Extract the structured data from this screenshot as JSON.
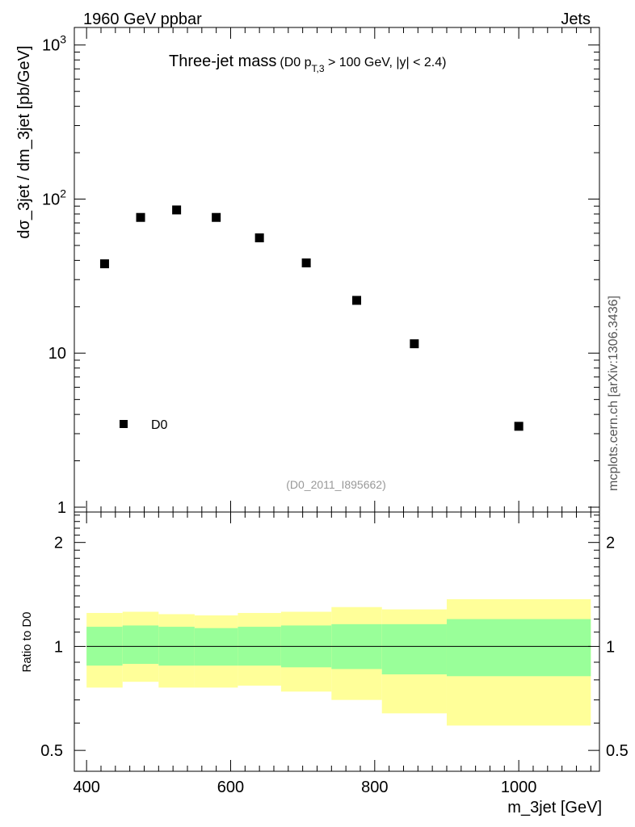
{
  "header": {
    "left": "1960 GeV ppbar",
    "right": "Jets"
  },
  "title": {
    "main": "Three-jet mass",
    "paren_open": "(D0 p",
    "sub": "T,3",
    "rest": " > 100 GeV, |y| < 2.4)"
  },
  "watermark": "(D0_2011_I895662)",
  "side_credit": "mcplots.cern.ch [arXiv:1306.3436]",
  "legend": {
    "label": "D0"
  },
  "chart_data": {
    "type": "scatter",
    "top": {
      "ylabel": "dσ_3jet / dm_3jet [pb/GeV]",
      "yscale": "log",
      "ylim": [
        0.93,
        1300
      ],
      "yticks": [
        {
          "value": 1,
          "label": "1"
        },
        {
          "value": 10,
          "label": "10"
        },
        {
          "value": 100,
          "label": "10",
          "exp": "2"
        },
        {
          "value": 1000,
          "label": "10",
          "exp": "3"
        }
      ],
      "series": [
        {
          "name": "D0",
          "x": [
            425,
            475,
            525,
            580,
            640,
            705,
            775,
            855,
            1000
          ],
          "y": [
            38,
            76,
            85,
            76,
            56,
            38.5,
            22,
            11.5,
            3.35
          ]
        }
      ]
    },
    "ratio": {
      "ylabel": "Ratio to D0",
      "yscale": "log",
      "ylim": [
        0.435,
        2.45
      ],
      "yticks": [
        {
          "value": 0.5,
          "label": "0.5"
        },
        {
          "value": 1,
          "label": "1"
        },
        {
          "value": 2,
          "label": "2"
        }
      ],
      "bands": [
        {
          "x0": 400,
          "x1": 450,
          "inner": [
            0.88,
            1.14
          ],
          "outer": [
            0.76,
            1.25
          ]
        },
        {
          "x0": 450,
          "x1": 500,
          "inner": [
            0.89,
            1.15
          ],
          "outer": [
            0.79,
            1.26
          ]
        },
        {
          "x0": 500,
          "x1": 550,
          "inner": [
            0.88,
            1.14
          ],
          "outer": [
            0.76,
            1.24
          ]
        },
        {
          "x0": 550,
          "x1": 610,
          "inner": [
            0.88,
            1.13
          ],
          "outer": [
            0.76,
            1.23
          ]
        },
        {
          "x0": 610,
          "x1": 670,
          "inner": [
            0.88,
            1.14
          ],
          "outer": [
            0.77,
            1.25
          ]
        },
        {
          "x0": 670,
          "x1": 740,
          "inner": [
            0.87,
            1.15
          ],
          "outer": [
            0.74,
            1.26
          ]
        },
        {
          "x0": 740,
          "x1": 810,
          "inner": [
            0.86,
            1.16
          ],
          "outer": [
            0.7,
            1.3
          ]
        },
        {
          "x0": 810,
          "x1": 900,
          "inner": [
            0.83,
            1.16
          ],
          "outer": [
            0.64,
            1.28
          ]
        },
        {
          "x0": 900,
          "x1": 1100,
          "inner": [
            0.82,
            1.2
          ],
          "outer": [
            0.59,
            1.37
          ]
        }
      ],
      "reference": 1
    },
    "xlabel": "m_3jet [GeV]",
    "xlim": [
      383,
      1112
    ],
    "xticks": [
      400,
      600,
      800,
      1000
    ]
  },
  "colors": {
    "inner_band": "#99ff99",
    "outer_band": "#ffff99",
    "marker": "#000000"
  }
}
